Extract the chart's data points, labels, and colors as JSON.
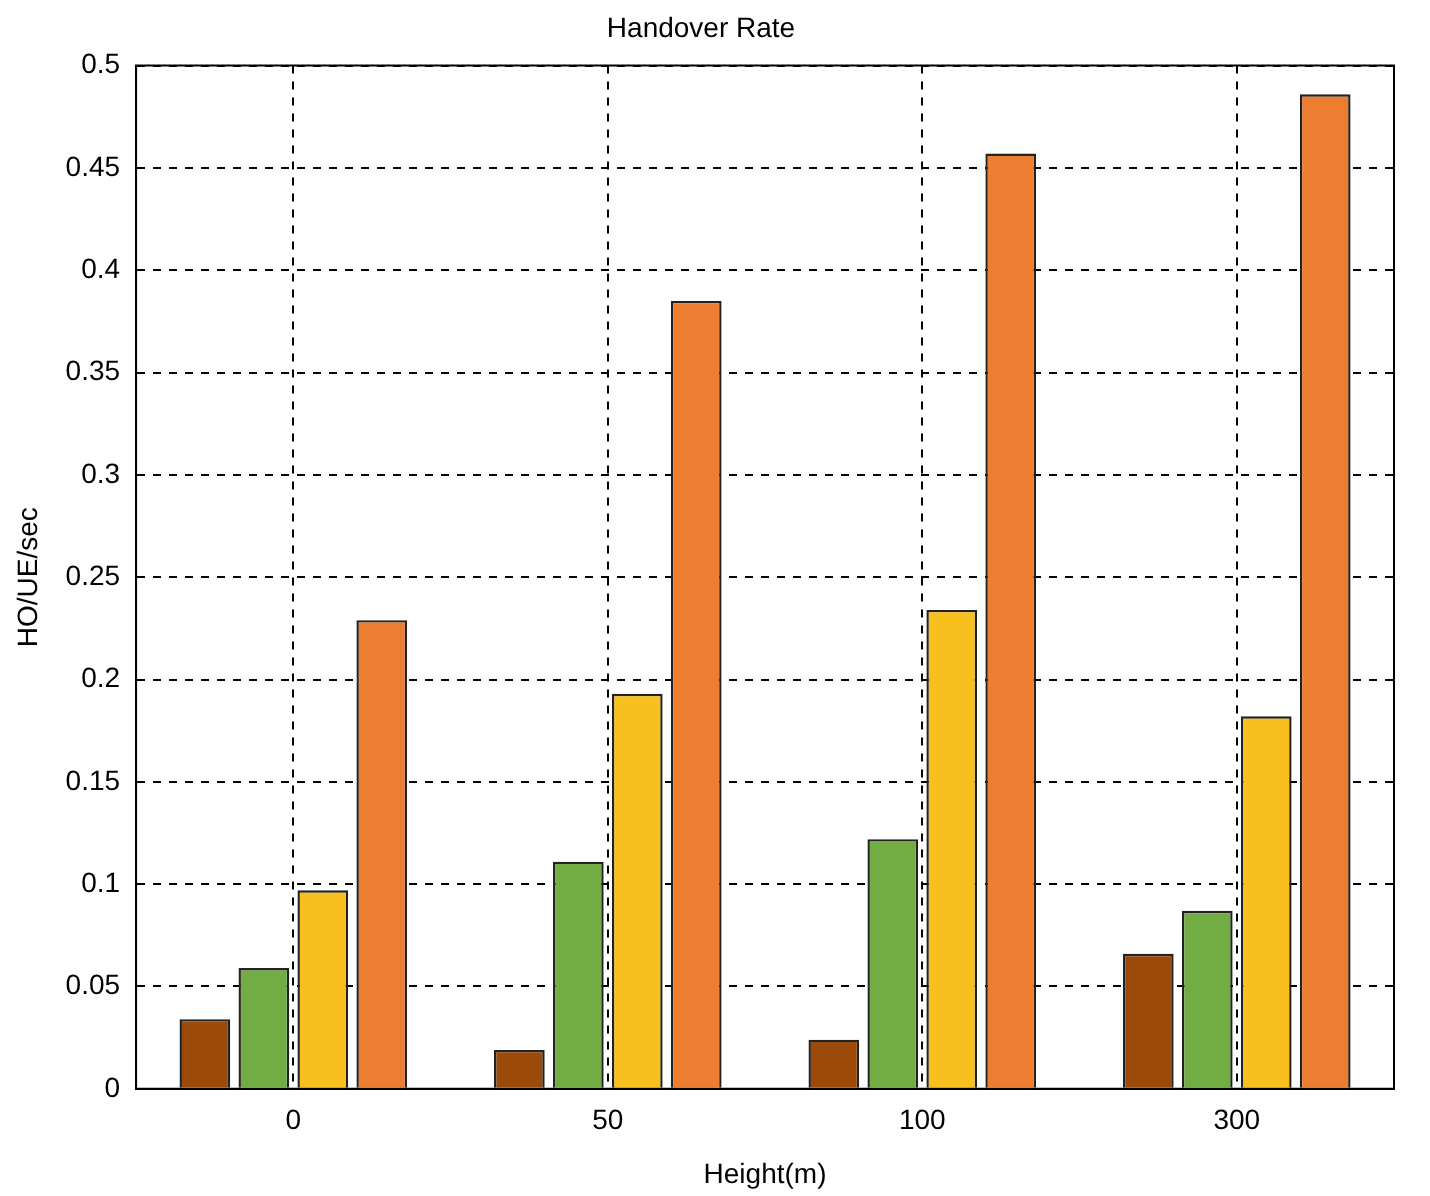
{
  "chart_data": {
    "type": "bar",
    "title": "Handover Rate",
    "xlabel": "Height(m)",
    "ylabel": "HO/UE/sec",
    "categories": [
      "0",
      "50",
      "100",
      "300"
    ],
    "series": [
      {
        "color": "#9c4a0a",
        "values": [
          0.034,
          0.019,
          0.024,
          0.066
        ]
      },
      {
        "color": "#72ad44",
        "values": [
          0.059,
          0.111,
          0.122,
          0.087
        ]
      },
      {
        "color": "#f8c01e",
        "values": [
          0.097,
          0.193,
          0.234,
          0.182
        ]
      },
      {
        "color": "#ed7d31",
        "values": [
          0.229,
          0.385,
          0.457,
          0.486
        ]
      }
    ],
    "ylim": [
      0,
      0.5
    ],
    "yticks": [
      0,
      0.05,
      0.1,
      0.15,
      0.2,
      0.25,
      0.3,
      0.35,
      0.4,
      0.45,
      0.5
    ],
    "grid": true,
    "legend": false
  }
}
